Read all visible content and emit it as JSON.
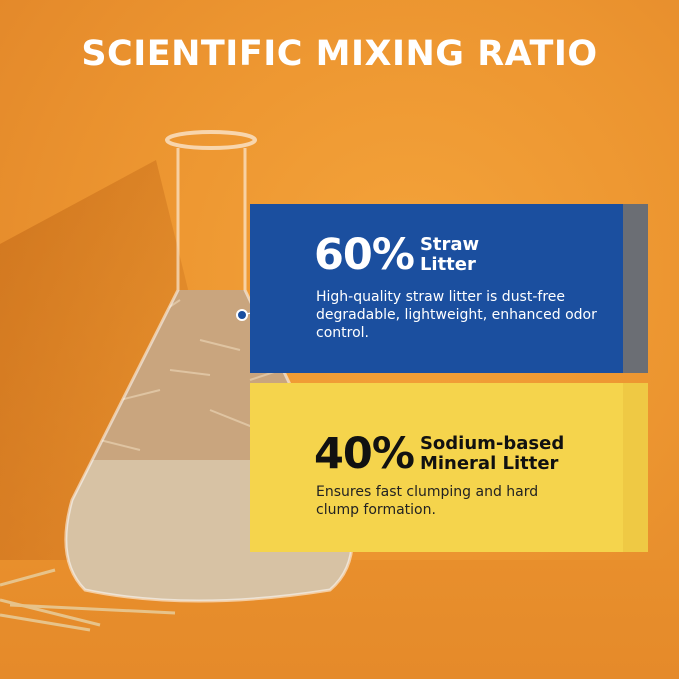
{
  "title": "SCIENTIFIC MIXING RATIO",
  "straw": {
    "percent": "60%",
    "label_line1": "Straw",
    "label_line2": "Litter",
    "description": "High-quality straw litter is dust-free degradable, lightweight, enhanced odor control.",
    "color": "#1b4f9f"
  },
  "mineral": {
    "percent": "40%",
    "label_line1": "Sodium-based",
    "label_line2": "Mineral Litter",
    "description": "Ensures fast clumping and hard clump formation.",
    "color": "#f5d44c"
  }
}
